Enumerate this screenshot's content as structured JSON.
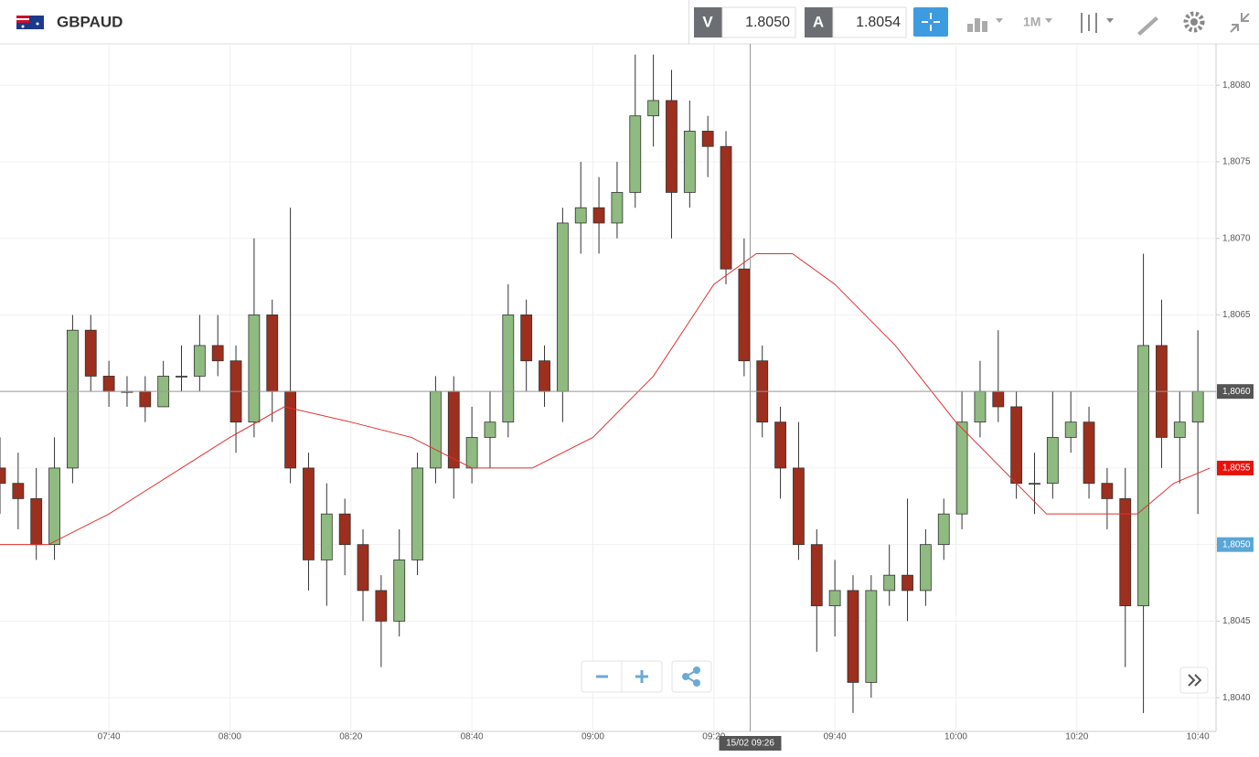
{
  "header": {
    "symbol": "GBPAUD",
    "sell_label": "V",
    "sell_price": "1.8050",
    "buy_label": "A",
    "buy_price": "1.8054",
    "timeframe": "1M"
  },
  "chart_data": {
    "type": "candlestick",
    "up_color": "#8fba80",
    "down_color": "#9c2f1d",
    "grid": true,
    "x": [
      "07:22",
      "07:25",
      "07:28",
      "07:31",
      "07:34",
      "07:37",
      "07:40",
      "07:43",
      "07:46",
      "07:49",
      "07:52",
      "07:55",
      "07:58",
      "08:01",
      "08:04",
      "08:07",
      "08:10",
      "08:13",
      "08:16",
      "08:19",
      "08:22",
      "08:25",
      "08:28",
      "08:31",
      "08:34",
      "08:37",
      "08:40",
      "08:43",
      "08:46",
      "08:49",
      "08:52",
      "08:55",
      "08:58",
      "09:01",
      "09:04",
      "09:07",
      "09:10",
      "09:13",
      "09:16",
      "09:19",
      "09:22",
      "09:25",
      "09:28",
      "09:31",
      "09:34",
      "09:37",
      "09:40",
      "09:43",
      "09:46",
      "09:49",
      "09:52",
      "09:55",
      "09:58",
      "10:01",
      "10:04",
      "10:07",
      "10:10",
      "10:13",
      "10:16",
      "10:19",
      "10:22",
      "10:25",
      "10:28",
      "10:31",
      "10:34",
      "10:37",
      "10:40"
    ],
    "open": [
      1.8055,
      1.8054,
      1.8053,
      1.805,
      1.8055,
      1.8064,
      1.8061,
      1.806,
      1.806,
      1.8059,
      1.8061,
      1.8061,
      1.8063,
      1.8062,
      1.8058,
      1.8065,
      1.806,
      1.8055,
      1.8049,
      1.8052,
      1.805,
      1.8047,
      1.8045,
      1.8049,
      1.8055,
      1.806,
      1.8055,
      1.8057,
      1.8058,
      1.8065,
      1.8062,
      1.806,
      1.8071,
      1.8072,
      1.8071,
      1.8073,
      1.8078,
      1.8079,
      1.8073,
      1.8077,
      1.8076,
      1.8068,
      1.8062,
      1.8058,
      1.8055,
      1.805,
      1.8046,
      1.8047,
      1.8041,
      1.8047,
      1.8048,
      1.8047,
      1.805,
      1.8052,
      1.8058,
      1.806,
      1.8059,
      1.8054,
      1.8054,
      1.8057,
      1.8058,
      1.8054,
      1.8053,
      1.8046,
      1.8063,
      1.8057,
      1.8058
    ],
    "high": [
      1.8057,
      1.8056,
      1.8055,
      1.8057,
      1.8065,
      1.8065,
      1.8062,
      1.8061,
      1.8061,
      1.8062,
      1.8063,
      1.8065,
      1.8065,
      1.8063,
      1.807,
      1.8066,
      1.8072,
      1.8056,
      1.8054,
      1.8053,
      1.8051,
      1.8048,
      1.8051,
      1.8056,
      1.8061,
      1.8061,
      1.8059,
      1.806,
      1.8067,
      1.8066,
      1.8063,
      1.8072,
      1.8075,
      1.8074,
      1.8075,
      1.8082,
      1.8082,
      1.8081,
      1.8079,
      1.8078,
      1.8077,
      1.807,
      1.8063,
      1.8059,
      1.8058,
      1.8051,
      1.8049,
      1.8048,
      1.8048,
      1.805,
      1.8053,
      1.8051,
      1.8053,
      1.806,
      1.8062,
      1.8064,
      1.806,
      1.8056,
      1.806,
      1.806,
      1.8059,
      1.8055,
      1.8055,
      1.8069,
      1.8066,
      1.806,
      1.8064
    ],
    "low": [
      1.8052,
      1.8051,
      1.8049,
      1.8049,
      1.8054,
      1.806,
      1.8059,
      1.8059,
      1.8058,
      1.8059,
      1.806,
      1.806,
      1.8061,
      1.8056,
      1.8057,
      1.8058,
      1.8054,
      1.8047,
      1.8046,
      1.8048,
      1.8045,
      1.8042,
      1.8044,
      1.8048,
      1.8054,
      1.8053,
      1.8054,
      1.8055,
      1.8057,
      1.806,
      1.8059,
      1.8058,
      1.8069,
      1.8069,
      1.807,
      1.8072,
      1.8076,
      1.807,
      1.8072,
      1.8074,
      1.8067,
      1.8061,
      1.8057,
      1.8053,
      1.8049,
      1.8043,
      1.8044,
      1.8039,
      1.804,
      1.8046,
      1.8045,
      1.8046,
      1.8049,
      1.8051,
      1.8057,
      1.8058,
      1.8053,
      1.8052,
      1.8053,
      1.8056,
      1.8053,
      1.8051,
      1.8042,
      1.8039,
      1.8055,
      1.8054,
      1.8052
    ],
    "close": [
      1.8054,
      1.8053,
      1.805,
      1.8055,
      1.8064,
      1.8061,
      1.806,
      1.806,
      1.8059,
      1.8061,
      1.8061,
      1.8063,
      1.8062,
      1.8058,
      1.8065,
      1.806,
      1.8055,
      1.8049,
      1.8052,
      1.805,
      1.8047,
      1.8045,
      1.8049,
      1.8055,
      1.806,
      1.8055,
      1.8057,
      1.8058,
      1.8065,
      1.8062,
      1.806,
      1.8071,
      1.8072,
      1.8071,
      1.8073,
      1.8078,
      1.8079,
      1.8073,
      1.8077,
      1.8076,
      1.8068,
      1.8062,
      1.8058,
      1.8055,
      1.805,
      1.8046,
      1.8047,
      1.8041,
      1.8047,
      1.8048,
      1.8047,
      1.805,
      1.8052,
      1.8058,
      1.806,
      1.8059,
      1.8054,
      1.8054,
      1.8057,
      1.8058,
      1.8054,
      1.8053,
      1.8046,
      1.8063,
      1.8057,
      1.8058,
      1.806
    ],
    "moving_average": {
      "color": "#e03030",
      "x": [
        "07:22",
        "07:30",
        "07:40",
        "08:00",
        "08:09",
        "08:20",
        "08:30",
        "08:40",
        "08:50",
        "09:00",
        "09:10",
        "09:20",
        "09:27",
        "09:33",
        "09:40",
        "09:50",
        "10:00",
        "10:10",
        "10:15",
        "10:24",
        "10:30",
        "10:36",
        "10:42"
      ],
      "values": [
        1.805,
        1.805,
        1.8052,
        1.8057,
        1.8059,
        1.8058,
        1.8057,
        1.8055,
        1.8055,
        1.8057,
        1.8061,
        1.8067,
        1.8069,
        1.8069,
        1.8067,
        1.8063,
        1.8058,
        1.8054,
        1.8052,
        1.8052,
        1.8052,
        1.8054,
        1.8055
      ]
    },
    "xlim": [
      "07:22",
      "10:43"
    ],
    "ylim": [
      1.80378,
      1.80827
    ],
    "xticks": [
      "07:40",
      "08:00",
      "08:20",
      "08:40",
      "09:00",
      "09:20",
      "09:40",
      "10:00",
      "10:20",
      "10:40"
    ],
    "yticks": [
      {
        "value": 1.804,
        "label": "1,8040"
      },
      {
        "value": 1.8045,
        "label": "1,8045"
      },
      {
        "value": 1.805,
        "label": "1,8050"
      },
      {
        "value": 1.8055,
        "label": "1,8055"
      },
      {
        "value": 1.806,
        "label": "1,8060"
      },
      {
        "value": 1.8065,
        "label": "1,8065"
      },
      {
        "value": 1.807,
        "label": "1,8070"
      },
      {
        "value": 1.8075,
        "label": "1,8075"
      },
      {
        "value": 1.808,
        "label": "1,8080"
      }
    ],
    "crosshair": {
      "price": {
        "value": 1.806,
        "label": "1,8060"
      },
      "time": "15/02 09:26"
    },
    "last_price": {
      "value": 1.8055,
      "label": "1,8055"
    },
    "bid_price": {
      "value": 1.805,
      "label": "1,8050"
    }
  }
}
